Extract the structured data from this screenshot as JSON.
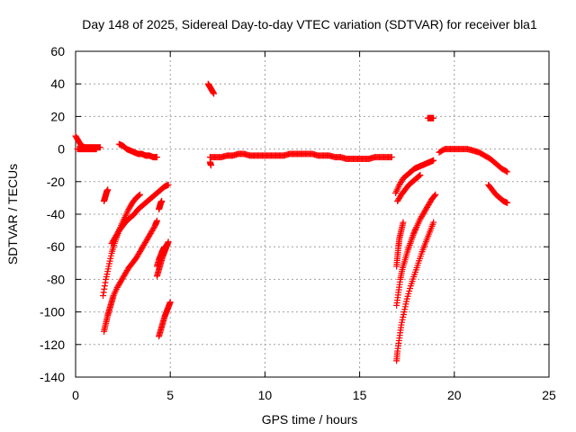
{
  "chart_data": {
    "type": "scatter",
    "title": "Day 148 of 2025, Sidereal Day-to-day VTEC variation (SDTVAR) for receiver bla1",
    "xlabel": "GPS time / hours",
    "ylabel": "SDTVAR / TECUs",
    "xlim": [
      0,
      25
    ],
    "ylim": [
      -140,
      60
    ],
    "xticks": [
      "0",
      "5",
      "10",
      "15",
      "20",
      "25"
    ],
    "yticks": [
      "60",
      "40",
      "20",
      "0",
      "-20",
      "-40",
      "-60",
      "-80",
      "-100",
      "-120",
      "-140"
    ],
    "grid": true,
    "marker": "plus",
    "color": "#ff0000",
    "series": [
      {
        "x": [
          0.0,
          0.15,
          0.3,
          0.5,
          0.7,
          0.9,
          1.1,
          1.3
        ],
        "y": [
          8,
          5,
          2,
          1,
          1,
          1,
          1,
          1
        ]
      },
      {
        "x": [
          0.1,
          0.3,
          0.5,
          0.7,
          0.9,
          1.1
        ],
        "y": [
          0,
          0,
          0,
          0,
          0,
          0
        ]
      },
      {
        "x": [
          2.3,
          2.5,
          2.7,
          2.9,
          3.1,
          3.3,
          3.5,
          3.7,
          3.9,
          4.1,
          4.3
        ],
        "y": [
          3,
          2,
          0,
          -1,
          -2,
          -3,
          -3,
          -4,
          -4,
          -5,
          -5
        ]
      },
      {
        "x": [
          1.5,
          1.55,
          1.6,
          1.65,
          1.7
        ],
        "y": [
          -32,
          -30,
          -28,
          -26,
          -25
        ]
      },
      {
        "x": [
          1.45,
          1.6,
          1.75,
          1.9,
          2.05,
          2.2,
          2.4,
          2.6,
          2.8,
          3.0,
          3.2,
          3.4
        ],
        "y": [
          -90,
          -80,
          -72,
          -64,
          -58,
          -53,
          -47,
          -42,
          -37,
          -33,
          -30,
          -28
        ]
      },
      {
        "x": [
          1.9,
          2.1,
          2.3,
          2.5,
          2.7,
          2.9,
          3.1,
          3.3,
          3.5,
          3.7,
          3.9,
          4.1,
          4.3,
          4.5,
          4.7,
          4.9
        ],
        "y": [
          -58,
          -54,
          -50,
          -47,
          -44,
          -42,
          -40,
          -37,
          -35,
          -33,
          -31,
          -29,
          -27,
          -25,
          -23,
          -22
        ]
      },
      {
        "x": [
          1.5,
          1.6,
          1.7,
          1.8,
          1.9,
          2.0,
          2.2,
          2.4,
          2.6,
          2.8,
          3.0,
          3.2,
          3.4,
          3.6,
          3.8,
          4.0,
          4.2,
          4.3
        ],
        "y": [
          -112,
          -107,
          -102,
          -98,
          -94,
          -90,
          -85,
          -81,
          -77,
          -73,
          -70,
          -67,
          -63,
          -59,
          -55,
          -51,
          -47,
          -44
        ]
      },
      {
        "x": [
          4.4,
          4.45,
          4.5,
          4.55
        ],
        "y": [
          -37,
          -35,
          -33,
          -32
        ]
      },
      {
        "x": [
          4.3,
          4.4,
          4.5,
          4.6,
          4.7,
          4.8,
          4.9
        ],
        "y": [
          -78,
          -74,
          -70,
          -66,
          -63,
          -60,
          -57
        ]
      },
      {
        "x": [
          4.3,
          4.4,
          4.5,
          4.6,
          4.7
        ],
        "y": [
          -72,
          -68,
          -65,
          -62,
          -60
        ]
      },
      {
        "x": [
          4.4,
          4.5,
          4.6,
          4.7,
          4.8,
          4.9,
          5.0
        ],
        "y": [
          -115,
          -111,
          -107,
          -103,
          -100,
          -97,
          -94
        ]
      },
      {
        "x": [
          7.0,
          7.1,
          7.2,
          7.3
        ],
        "y": [
          40,
          38,
          36,
          34
        ]
      },
      {
        "x": [
          7.1,
          7.4,
          7.7,
          8.0,
          8.3,
          8.6,
          8.9,
          9.2,
          9.5,
          9.8,
          10.1,
          10.4,
          10.7,
          11.0,
          11.3,
          11.6,
          11.9,
          12.2,
          12.5,
          12.8,
          13.1,
          13.4,
          13.7,
          14.0,
          14.3,
          14.6,
          14.9,
          15.2,
          15.5,
          15.8,
          16.1,
          16.4,
          16.7
        ],
        "y": [
          -5,
          -5,
          -5,
          -4,
          -4,
          -3,
          -3,
          -4,
          -4,
          -4,
          -4,
          -4,
          -4,
          -4,
          -3,
          -3,
          -3,
          -3,
          -3,
          -4,
          -4,
          -4,
          -5,
          -5,
          -6,
          -6,
          -6,
          -6,
          -6,
          -5,
          -5,
          -5,
          -5
        ]
      },
      {
        "x": [
          7.1,
          7.15
        ],
        "y": [
          -8,
          -10
        ]
      },
      {
        "x": [
          16.9,
          17.1,
          17.3,
          17.5,
          17.7,
          17.9,
          18.1,
          18.3,
          18.5,
          18.7,
          18.9
        ],
        "y": [
          -27,
          -22,
          -18,
          -16,
          -14,
          -12,
          -11,
          -10,
          -9,
          -8,
          -7
        ]
      },
      {
        "x": [
          17.0,
          17.2,
          17.4,
          17.6,
          17.8,
          18.0,
          18.2
        ],
        "y": [
          -32,
          -28,
          -25,
          -22,
          -20,
          -18,
          -16
        ]
      },
      {
        "x": [
          18.6,
          18.7,
          18.8,
          18.9
        ],
        "y": [
          19,
          19,
          19,
          19
        ]
      },
      {
        "x": [
          16.95,
          17.0,
          17.05,
          17.1,
          17.2,
          17.3
        ],
        "y": [
          -72,
          -66,
          -60,
          -55,
          -50,
          -45
        ]
      },
      {
        "x": [
          16.95,
          17.05,
          17.15,
          17.25,
          17.4,
          17.55,
          17.7,
          17.85,
          18.0,
          18.2,
          18.4,
          18.6,
          18.8,
          19.0
        ],
        "y": [
          -96,
          -88,
          -80,
          -74,
          -68,
          -62,
          -57,
          -52,
          -48,
          -43,
          -39,
          -35,
          -31,
          -28
        ]
      },
      {
        "x": [
          16.95,
          17.0,
          17.1,
          17.2,
          17.35,
          17.5,
          17.7,
          17.9,
          18.1,
          18.3,
          18.5,
          18.7,
          18.9
        ],
        "y": [
          -130,
          -124,
          -116,
          -108,
          -100,
          -92,
          -84,
          -77,
          -70,
          -63,
          -57,
          -51,
          -45
        ]
      },
      {
        "x": [
          19.2,
          19.5,
          19.8,
          20.1,
          20.4,
          20.7,
          21.0,
          21.3,
          21.6,
          21.9,
          22.2,
          22.5,
          22.8
        ],
        "y": [
          -2,
          0,
          0,
          0,
          0,
          0,
          -1,
          -2,
          -4,
          -6,
          -9,
          -12,
          -14
        ]
      },
      {
        "x": [
          21.8,
          22.0,
          22.2,
          22.4,
          22.6,
          22.8
        ],
        "y": [
          -22,
          -25,
          -28,
          -30,
          -32,
          -33
        ]
      }
    ]
  }
}
